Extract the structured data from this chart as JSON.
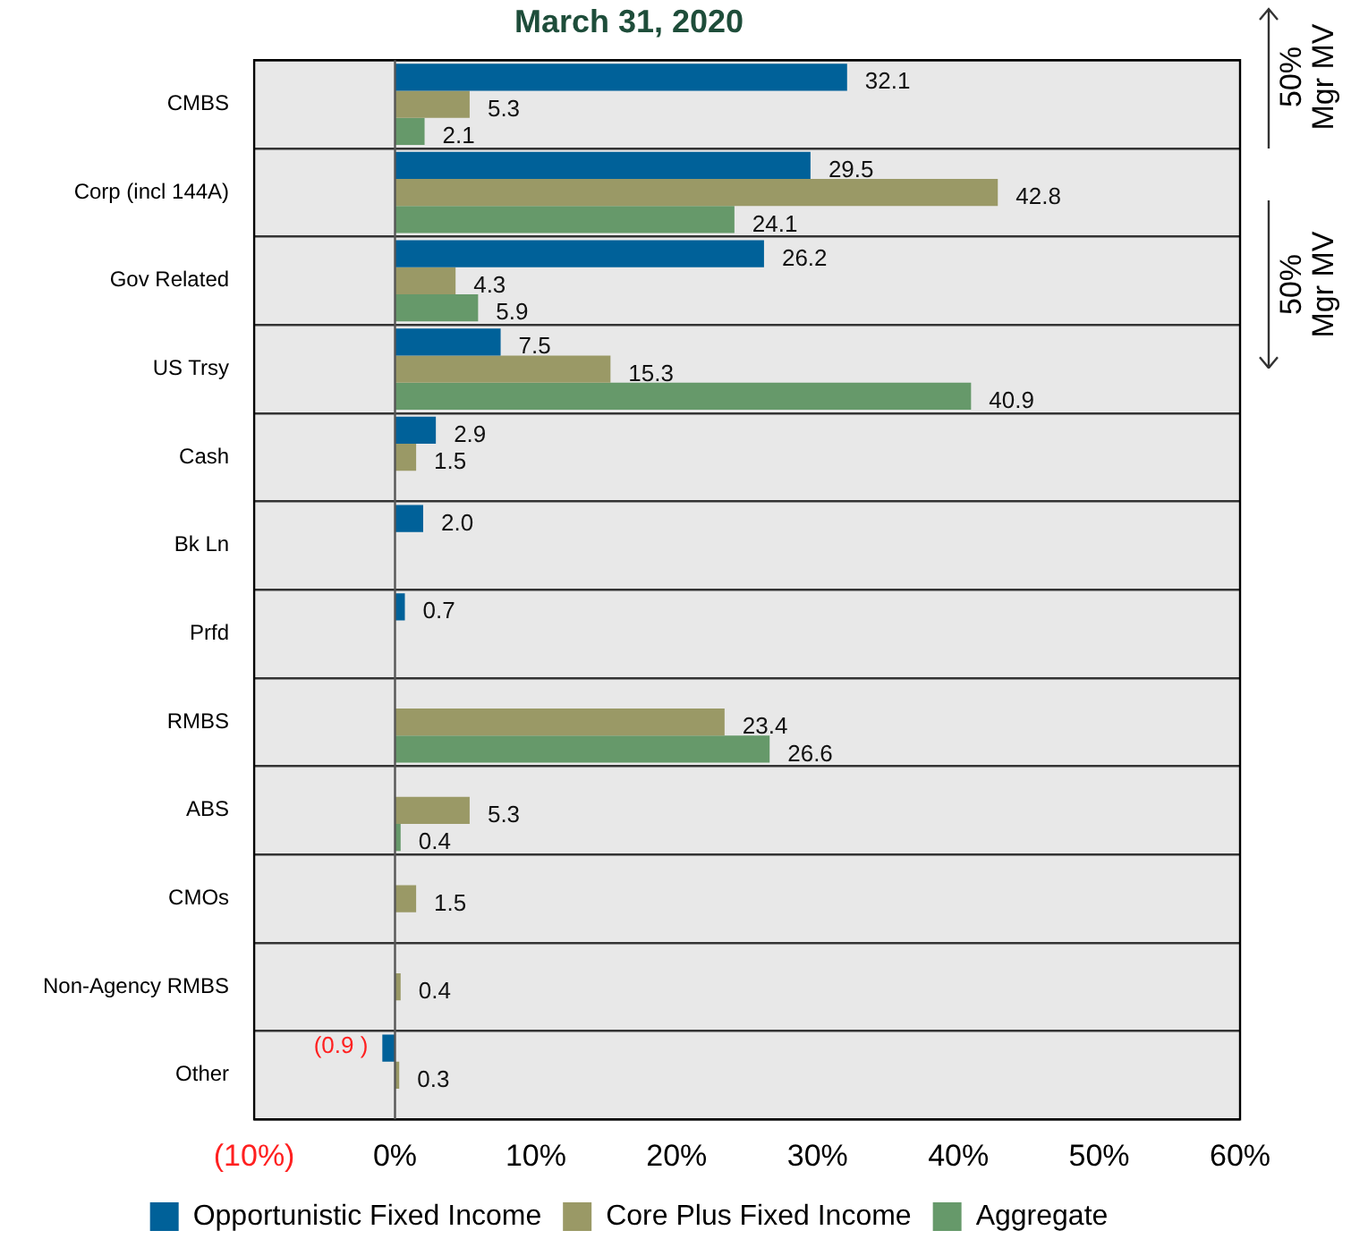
{
  "chart_data": {
    "type": "bar",
    "orientation": "horizontal",
    "title": "March 31, 2020",
    "categories": [
      "CMBS",
      "Corp (incl 144A)",
      "Gov Related",
      "US Trsy",
      "Cash",
      "Bk Ln",
      "Prfd",
      "RMBS",
      "ABS",
      "CMOs",
      "Non-Agency RMBS",
      "Other"
    ],
    "series": [
      {
        "name": "Opportunistic Fixed Income",
        "color": "#006199",
        "values": [
          32.1,
          29.5,
          26.2,
          7.5,
          2.9,
          2.0,
          0.7,
          null,
          null,
          null,
          null,
          -0.9
        ],
        "value_labels": [
          "32.1",
          "29.5",
          "26.2",
          "7.5",
          "2.9",
          "2.0",
          "0.7",
          null,
          null,
          null,
          null,
          "(0.9 )"
        ]
      },
      {
        "name": "Core Plus Fixed Income",
        "color": "#9a9966",
        "values": [
          5.3,
          42.8,
          4.3,
          15.3,
          1.5,
          null,
          null,
          23.4,
          5.3,
          1.5,
          0.4,
          0.3
        ],
        "value_labels": [
          "5.3",
          "42.8",
          "4.3",
          "15.3",
          "1.5",
          null,
          null,
          "23.4",
          "5.3",
          "1.5",
          "0.4",
          "0.3"
        ]
      },
      {
        "name": "Aggregate",
        "color": "#66996a",
        "values": [
          2.1,
          24.1,
          5.9,
          40.9,
          null,
          null,
          null,
          26.6,
          0.4,
          null,
          null,
          null
        ],
        "value_labels": [
          "2.1",
          "24.1",
          "5.9",
          "40.9",
          null,
          null,
          null,
          "26.6",
          "0.4",
          null,
          null,
          null
        ]
      }
    ],
    "xlim": [
      -10,
      60
    ],
    "xticks": [
      {
        "value": -10,
        "label": "(10%)"
      },
      {
        "value": 0,
        "label": "0%"
      },
      {
        "value": 10,
        "label": "10%"
      },
      {
        "value": 20,
        "label": "20%"
      },
      {
        "value": 30,
        "label": "30%"
      },
      {
        "value": 40,
        "label": "40%"
      },
      {
        "value": 50,
        "label": "50%"
      },
      {
        "value": 60,
        "label": "60%"
      }
    ],
    "grid": "y",
    "legend": "bottom",
    "annotations": [
      "50% Mgr MV",
      "50% Mgr MV"
    ]
  }
}
